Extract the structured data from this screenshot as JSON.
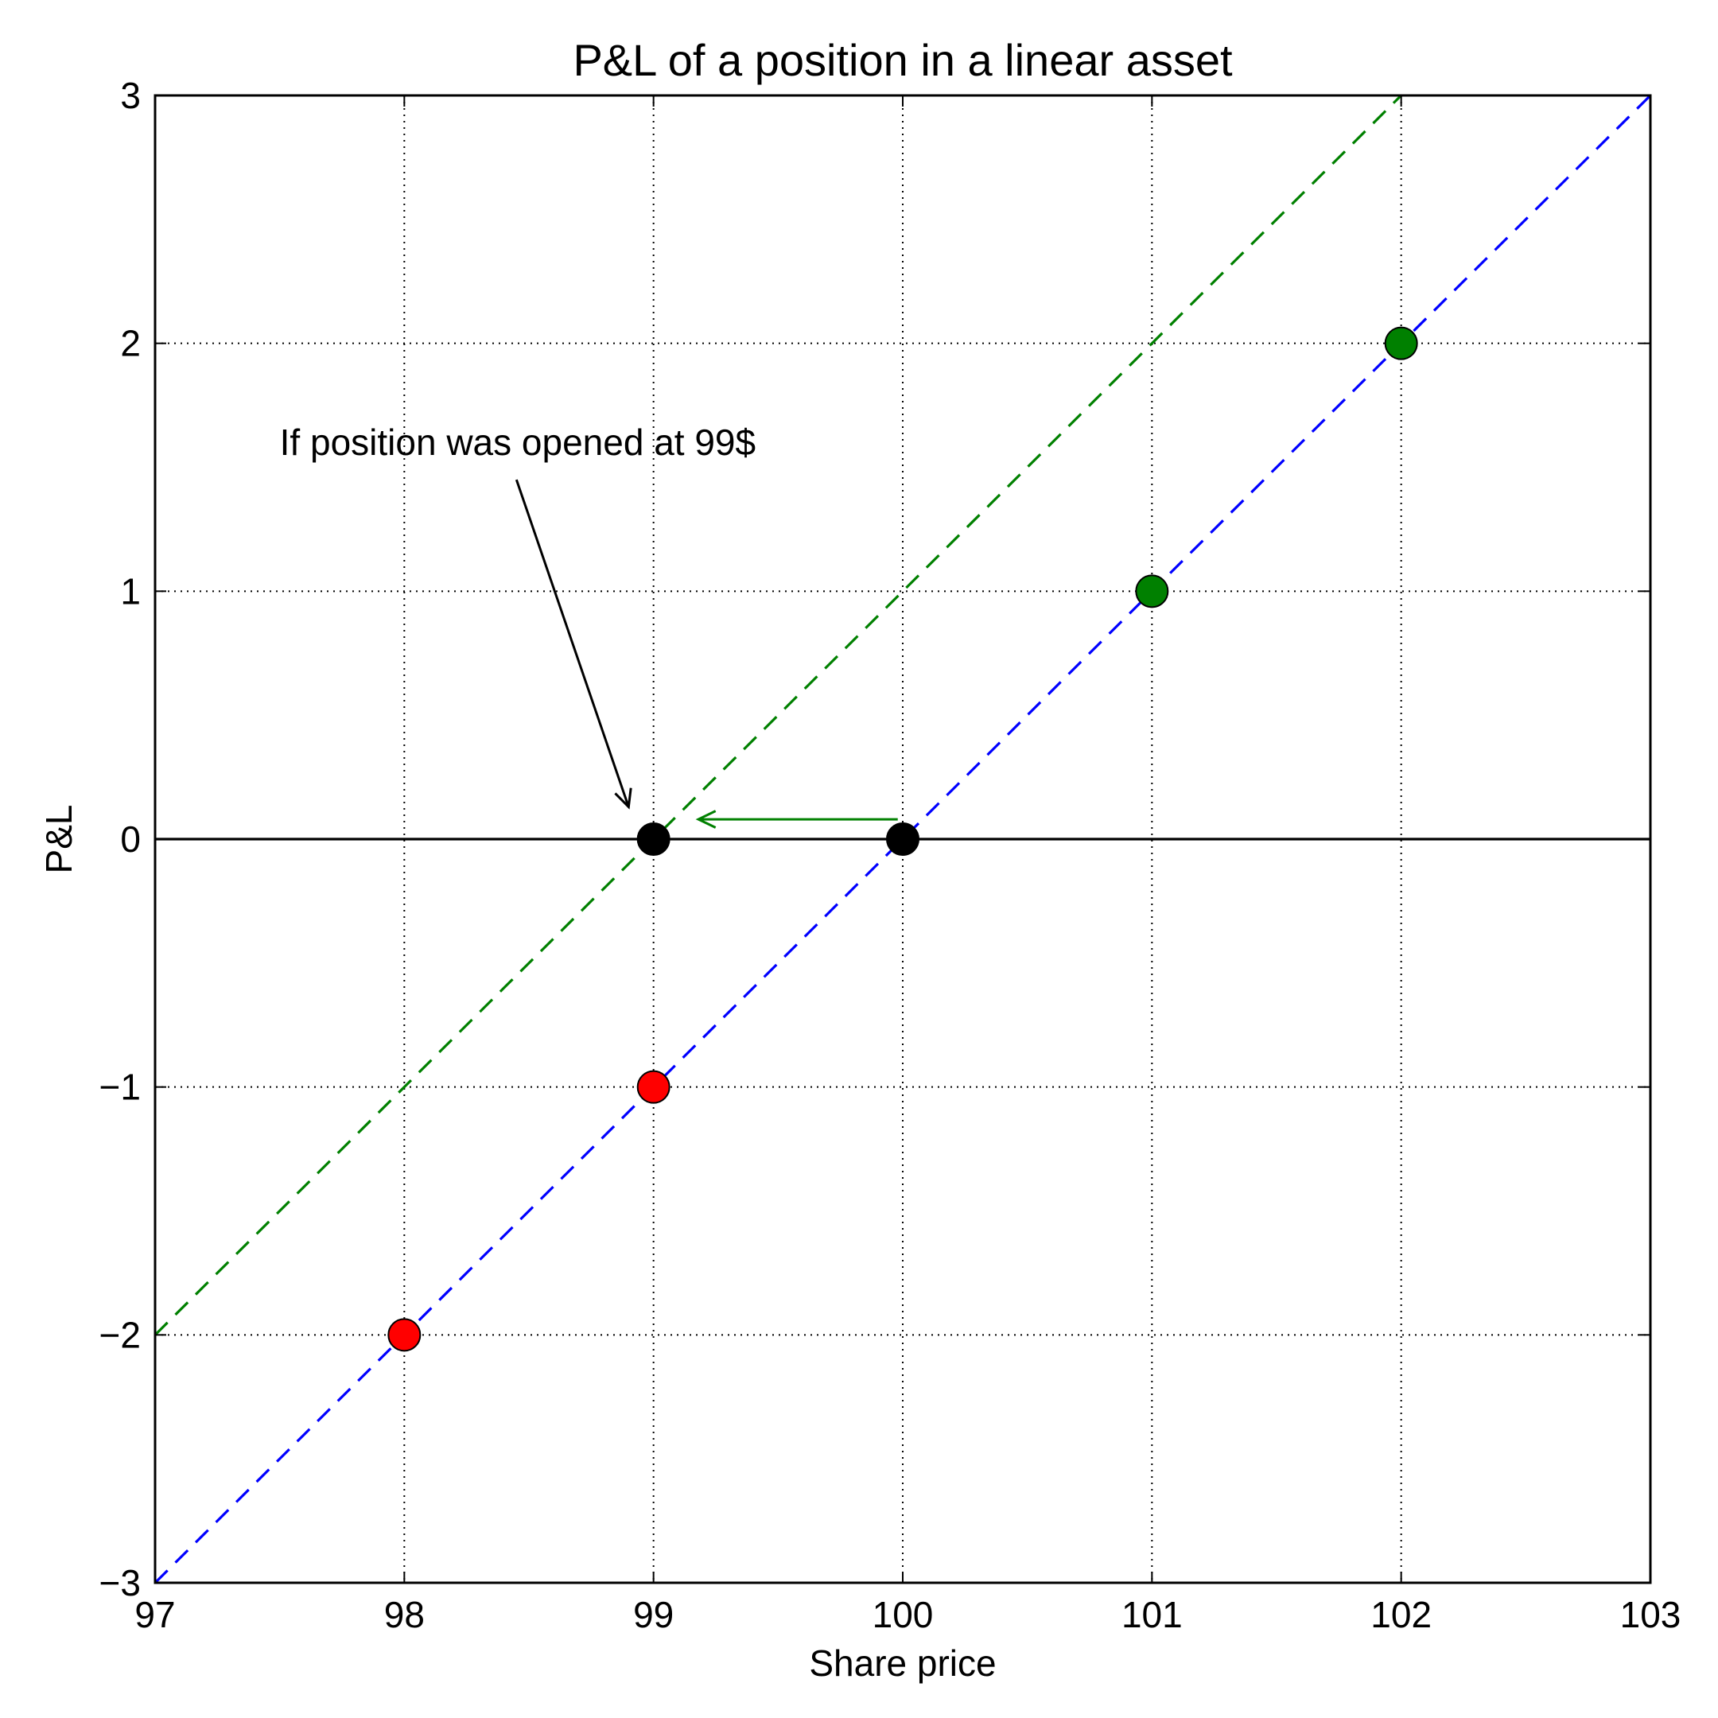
{
  "chart_data": {
    "type": "line",
    "title": "P&L of a position in a linear asset",
    "xlabel": "Share price",
    "ylabel": "P&L",
    "xlim": [
      97,
      103
    ],
    "ylim": [
      -3,
      3
    ],
    "xticks": [
      97,
      98,
      99,
      100,
      101,
      102,
      103
    ],
    "yticks": [
      -3,
      -2,
      -1,
      0,
      1,
      2,
      3
    ],
    "xtick_labels": [
      "97",
      "98",
      "99",
      "100",
      "101",
      "102",
      "103"
    ],
    "ytick_labels": [
      "−3",
      "−2",
      "−1",
      "0",
      "1",
      "2",
      "3"
    ],
    "grid": true,
    "series": [
      {
        "x": [
          97,
          103
        ],
        "y": [
          -3,
          3
        ],
        "color": "#0000ff",
        "style": "dashed"
      },
      {
        "x": [
          97,
          102
        ],
        "y": [
          -2,
          3
        ],
        "color": "#008000",
        "style": "dashed"
      },
      {
        "x": [
          97,
          103
        ],
        "y": [
          0,
          0
        ],
        "color": "#000000",
        "style": "solid"
      }
    ],
    "points": [
      {
        "x": 98,
        "y": -2,
        "color": "#ff0000"
      },
      {
        "x": 99,
        "y": -1,
        "color": "#ff0000"
      },
      {
        "x": 101,
        "y": 1,
        "color": "#008000"
      },
      {
        "x": 102,
        "y": 2,
        "color": "#008000"
      },
      {
        "x": 99,
        "y": 0,
        "color": "#000000"
      },
      {
        "x": 100,
        "y": 0,
        "color": "#000000"
      }
    ],
    "annotations": [
      {
        "text": "If position was opened at 99$",
        "text_x": 97.5,
        "text_y": 1.55,
        "arrow_to": [
          98.9,
          0.13
        ],
        "arrow_from": [
          98.45,
          1.45
        ],
        "color": "#000000"
      },
      {
        "text": "",
        "arrow_from": [
          99.98,
          0.08
        ],
        "arrow_to": [
          99.18,
          0.08
        ],
        "color": "#008000"
      }
    ]
  }
}
